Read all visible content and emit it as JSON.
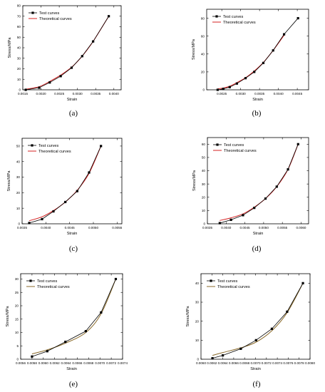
{
  "legend": {
    "test": "Test curves",
    "theory": "Theoretical curves"
  },
  "colors": {
    "test": "#000000",
    "theory": "#d42020",
    "theory_alt": "#8a6a2a"
  },
  "chart_data": [
    {
      "type": "line",
      "label": "(a)",
      "xlabel": "Strain",
      "ylabel": "Stress/MPa",
      "xlim": [
        0.0015,
        0.0042
      ],
      "ylim": [
        0,
        80
      ],
      "xticks": [
        "0.0015",
        "0.0020",
        "0.0025",
        "0.0030",
        "0.0035",
        "0.0040"
      ],
      "yticks": [
        "0",
        "10",
        "20",
        "30",
        "40",
        "50",
        "60",
        "70",
        "80"
      ],
      "legend_position": "top-left",
      "theory_color": "#d42020",
      "series": [
        {
          "name": "Test curves",
          "x": [
            0.00158,
            0.00195,
            0.00224,
            0.00254,
            0.00284,
            0.00313,
            0.00343,
            0.00386
          ],
          "y": [
            0,
            2,
            7,
            13,
            21,
            32,
            46,
            70
          ]
        },
        {
          "name": "Theoretical curves",
          "x": [
            0.00158,
            0.00195,
            0.00224,
            0.00254,
            0.00284,
            0.00313,
            0.00343,
            0.00386
          ],
          "y": [
            0.5,
            3,
            8,
            14,
            21.5,
            32,
            46,
            70
          ]
        }
      ]
    },
    {
      "type": "line",
      "label": "(b)",
      "xlabel": "Strain",
      "ylabel": "Stress/MPa",
      "xlim": [
        0.0021,
        0.0048
      ],
      "ylim": [
        0,
        90
      ],
      "xticks": [
        "0.0025",
        "0.0030",
        "0.0035",
        "0.0040",
        "0.0045"
      ],
      "yticks": [
        "0",
        "20",
        "40",
        "60",
        "80"
      ],
      "legend_position": "top-left",
      "theory_color": "#d42020",
      "series": [
        {
          "name": "Test curves",
          "x": [
            0.00239,
            0.00254,
            0.00271,
            0.0029,
            0.00313,
            0.00336,
            0.0036,
            0.00386,
            0.00415
          ],
          "y": [
            0,
            1,
            3,
            7,
            13,
            20,
            30,
            44,
            62
          ]
        },
        {
          "name": "Theoretical curves",
          "x": [
            0.00239,
            0.00254,
            0.00271,
            0.0029,
            0.00313,
            0.00336,
            0.0036,
            0.00386,
            0.00415
          ],
          "y": [
            1,
            2,
            4,
            8,
            13.5,
            21,
            30.5,
            44,
            61
          ]
        }
      ],
      "extra_point": {
        "x": 0.00452,
        "y": 80
      }
    },
    {
      "type": "line",
      "label": "(c)",
      "xlabel": "Strain",
      "ylabel": "Stress/MPa",
      "xlim": [
        0.0035,
        0.0056
      ],
      "ylim": [
        0,
        55
      ],
      "xticks": [
        "0.0035",
        "0.0040",
        "0.0045",
        "0.0050",
        "0.0055"
      ],
      "yticks": [
        "0",
        "10",
        "20",
        "30",
        "40",
        "50"
      ],
      "legend_position": "top-left",
      "theory_color": "#d42020",
      "series": [
        {
          "name": "Test curves",
          "x": [
            0.00365,
            0.00392,
            0.00416,
            0.00441,
            0.00466,
            0.00491,
            0.00516
          ],
          "y": [
            0.5,
            3,
            8,
            14,
            21,
            33,
            50
          ]
        },
        {
          "name": "Theoretical curves",
          "x": [
            0.00365,
            0.00392,
            0.00416,
            0.00441,
            0.00466,
            0.00491,
            0.00516
          ],
          "y": [
            2,
            4.5,
            8.5,
            14,
            21.5,
            32.5,
            50
          ]
        }
      ]
    },
    {
      "type": "line",
      "label": "(d)",
      "xlabel": "Strain",
      "ylabel": "Stress/MPa",
      "xlim": [
        0.0035,
        0.0062
      ],
      "ylim": [
        0,
        65
      ],
      "xticks": [
        "0.0035",
        "0.0040",
        "0.0045",
        "0.0050",
        "0.0055",
        "0.0060"
      ],
      "yticks": [
        "0",
        "10",
        "20",
        "30",
        "40",
        "50",
        "60"
      ],
      "legend_position": "top-left",
      "theory_color": "#d42020",
      "series": [
        {
          "name": "Test curves",
          "x": [
            0.00383,
            0.00413,
            0.00445,
            0.00475,
            0.00505,
            0.00535,
            0.00565,
            0.00592
          ],
          "y": [
            0.5,
            3,
            6.5,
            12,
            19,
            28,
            41,
            60
          ]
        },
        {
          "name": "Theoretical curves",
          "x": [
            0.00383,
            0.00413,
            0.00445,
            0.00475,
            0.00505,
            0.00535,
            0.00565,
            0.00592
          ],
          "y": [
            2.5,
            4.5,
            7.5,
            12.5,
            19,
            28,
            41,
            60
          ]
        }
      ]
    },
    {
      "type": "line",
      "label": "(e)",
      "xlabel": "Strain",
      "ylabel": "Stress/MPa",
      "xlim": [
        0.0056,
        0.0074
      ],
      "ylim": [
        0,
        32
      ],
      "xticks": [
        "0.0056",
        "0.0058",
        "0.0060",
        "0.0062",
        "0.0064",
        "0.0066",
        "0.0068",
        "0.0070",
        "0.0072",
        "0.0074"
      ],
      "yticks": [
        "0",
        "5",
        "10",
        "15",
        "20",
        "25",
        "30"
      ],
      "legend_position": "top-left",
      "theory_color": "#8a6a2a",
      "series": [
        {
          "name": "Test curves",
          "x": [
            0.0058,
            0.00607,
            0.00639,
            0.00675,
            0.00702,
            0.00728
          ],
          "y": [
            1,
            3,
            6.5,
            10.5,
            17.5,
            30
          ]
        },
        {
          "name": "Theoretical curves",
          "x": [
            0.0058,
            0.00607,
            0.00639,
            0.00675,
            0.00702,
            0.00728
          ],
          "y": [
            2,
            3.5,
            6,
            10,
            17,
            30
          ]
        }
      ]
    },
    {
      "type": "line",
      "label": "(f)",
      "xlabel": "Strain",
      "ylabel": "Stress/MPa",
      "xlim": [
        0.006,
        0.008
      ],
      "ylim": [
        0,
        45
      ],
      "xticks": [
        "0.0060",
        "0.0062",
        "0.0064",
        "0.0066",
        "0.0068",
        "0.0070",
        "0.0072",
        "0.0074",
        "0.0076",
        "0.0078",
        "0.0080"
      ],
      "yticks": [
        "0",
        "10",
        "20",
        "30",
        "40"
      ],
      "legend_position": "top-left",
      "theory_color": "#8a6a2a",
      "series": [
        {
          "name": "Test curves",
          "x": [
            0.00621,
            0.0064,
            0.00673,
            0.00701,
            0.0073,
            0.00758,
            0.00787
          ],
          "y": [
            0.5,
            2,
            5.5,
            10,
            16,
            25,
            40
          ]
        },
        {
          "name": "Theoretical curves",
          "x": [
            0.00621,
            0.0064,
            0.00673,
            0.00701,
            0.0073,
            0.00758,
            0.00787
          ],
          "y": [
            2,
            3.5,
            6,
            9,
            15,
            24.5,
            40
          ]
        }
      ]
    }
  ]
}
